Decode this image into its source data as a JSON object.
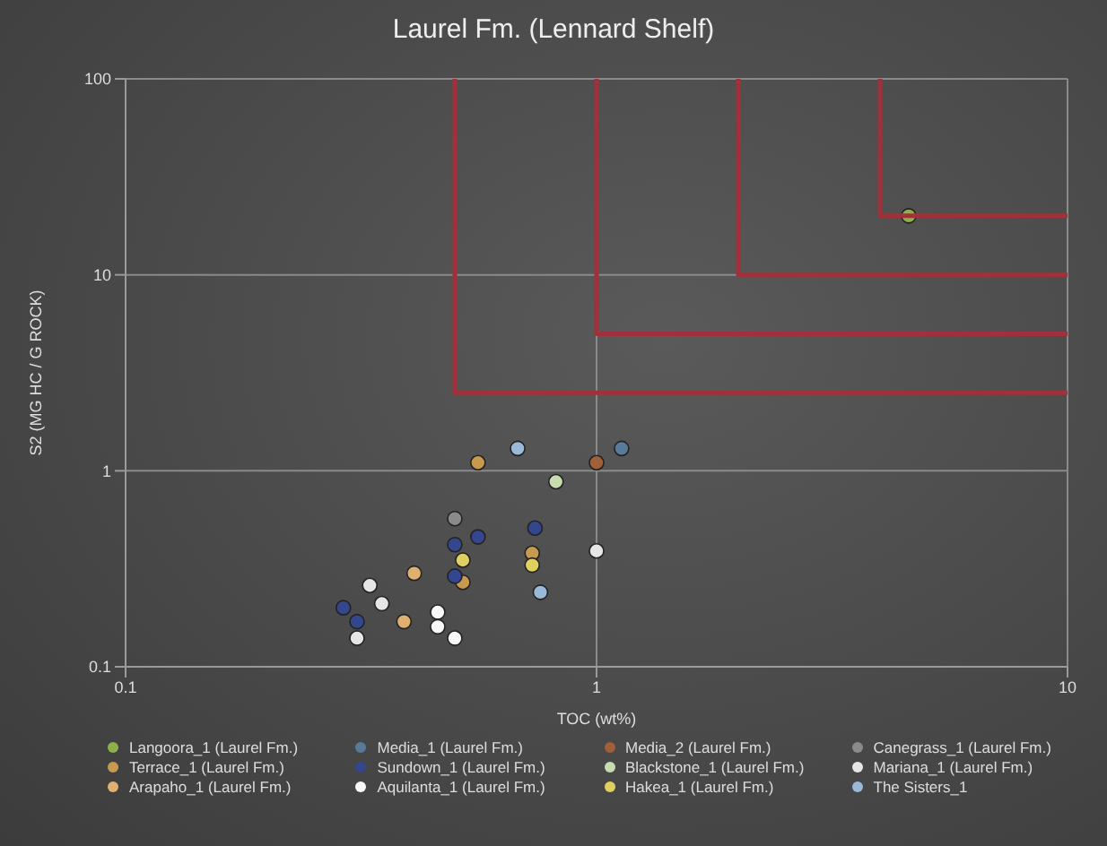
{
  "chart_data": {
    "type": "scatter",
    "title": "Laurel Fm. (Lennard Shelf)",
    "xlabel": "TOC (wt%)",
    "ylabel": "S2 (MG HC / G ROCK)",
    "log": "xy",
    "grid": true,
    "legend": "bottom",
    "marker": "circle",
    "xlim": [
      0.1,
      10
    ],
    "xticks": [
      0.1,
      1,
      10
    ],
    "ylim": [
      0.1,
      100
    ],
    "yticks": [
      0.1,
      1,
      10,
      100
    ],
    "series": [
      {
        "name": "Langoora_1 (Laurel Fm.)",
        "color": "#8db04a",
        "x": [
          4.6
        ],
        "values": [
          20
        ]
      },
      {
        "name": "Media_1 (Laurel Fm.)",
        "color": "#5a7a9c",
        "x": [
          1.13
        ],
        "values": [
          1.3
        ]
      },
      {
        "name": "Media_2 (Laurel Fm.)",
        "color": "#a0603a",
        "x": [
          1.0
        ],
        "values": [
          1.1
        ]
      },
      {
        "name": "Canegrass_1 (Laurel Fm.)",
        "color": "#8a8a8a",
        "x": [
          0.5
        ],
        "values": [
          0.57
        ]
      },
      {
        "name": "Terrace_1 (Laurel Fm.)",
        "color": "#c89a50",
        "x": [
          0.56,
          0.73,
          0.52
        ],
        "values": [
          1.1,
          0.38,
          0.27
        ]
      },
      {
        "name": "Sundown_1 (Laurel Fm.)",
        "color": "#34468e",
        "x": [
          0.56,
          0.5,
          0.74,
          0.5,
          0.29,
          0.31
        ],
        "values": [
          0.46,
          0.42,
          0.51,
          0.29,
          0.2,
          0.17
        ]
      },
      {
        "name": "Blackstone_1 (Laurel Fm.)",
        "color": "#c8dcb0",
        "x": [
          0.82
        ],
        "values": [
          0.88
        ]
      },
      {
        "name": "Mariana_1 (Laurel Fm.)",
        "color": "#e6e6e6",
        "x": [
          1.0,
          0.33,
          0.35,
          0.31
        ],
        "values": [
          0.39,
          0.26,
          0.21,
          0.14
        ]
      },
      {
        "name": "Arapaho_1 (Laurel Fm.)",
        "color": "#e0b070",
        "x": [
          0.39,
          0.41
        ],
        "values": [
          0.17,
          0.3
        ]
      },
      {
        "name": "Aquilanta_1 (Laurel Fm.)",
        "color": "#f8f8f8",
        "x": [
          0.46,
          0.46,
          0.5
        ],
        "values": [
          0.19,
          0.16,
          0.14
        ]
      },
      {
        "name": "Hakea_1 (Laurel Fm.)",
        "color": "#e0d060",
        "x": [
          0.52,
          0.73
        ],
        "values": [
          0.35,
          0.33
        ]
      },
      {
        "name": "The Sisters_1",
        "color": "#9ab8d8",
        "x": [
          0.68,
          0.76
        ],
        "values": [
          1.3,
          0.24
        ]
      },
      {
        "type": "line",
        "color": "#a0303a",
        "marker": "none",
        "x": [
          0.5,
          0.5,
          10
        ],
        "values": [
          100,
          2.5,
          2.5
        ]
      },
      {
        "type": "line",
        "color": "#a0303a",
        "marker": "none",
        "x": [
          1,
          1,
          10
        ],
        "values": [
          100,
          5,
          5
        ]
      },
      {
        "type": "line",
        "color": "#a0303a",
        "marker": "none",
        "x": [
          2,
          2,
          10
        ],
        "values": [
          100,
          10,
          10
        ]
      },
      {
        "type": "line",
        "color": "#a0303a",
        "marker": "none",
        "x": [
          4,
          4,
          10
        ],
        "values": [
          100,
          20,
          20
        ]
      }
    ]
  }
}
